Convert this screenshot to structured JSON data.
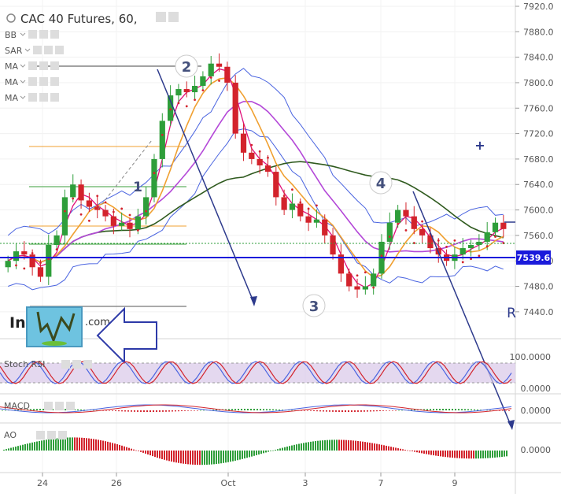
{
  "header": {
    "title": "CAC 40 Futures, 60,"
  },
  "indicators": [
    {
      "label": "BB"
    },
    {
      "label": "SAR"
    },
    {
      "label": "MA"
    },
    {
      "label": "MA"
    },
    {
      "label": "MA"
    }
  ],
  "price_axis": {
    "ticks": [
      "7920.0",
      "7880.0",
      "7840.0",
      "7800.0",
      "7760.0",
      "7720.0",
      "7680.0",
      "7640.0",
      "7600.0",
      "7560.0",
      "7520.0",
      "7480.0",
      "7440.0"
    ],
    "last_price": "7539.6",
    "last_price_color": "#1a1adb"
  },
  "time_axis": {
    "labels": [
      "24",
      "26",
      "Oct",
      "3",
      "7",
      "9"
    ]
  },
  "wave_labels": [
    "1",
    "2",
    "3",
    "4"
  ],
  "watermark": {
    "text": "In",
    "suffix": ".com"
  },
  "panes": {
    "stoch_rsi": {
      "label": "Stoch RSI",
      "ticks": [
        "100.0000",
        "0.0000"
      ]
    },
    "macd": {
      "label": "MACD",
      "ticks": [
        "0.0000"
      ]
    },
    "ao": {
      "label": "AO",
      "ticks": [
        "0.0000"
      ]
    }
  },
  "colors": {
    "bull": "#2e9e3a",
    "bear": "#d3232c",
    "bb": "#4a64e0",
    "sar": "#d3232c",
    "ma_fast": "#e0107a",
    "ma_mid": "#f0a030",
    "ma_slow": "#b448d8",
    "ma_long": "#2f5a1e",
    "arrow": "#2d3a8c"
  },
  "chart_data": {
    "type": "candlestick",
    "title": "CAC 40 Futures, 60,",
    "ylim": [
      7420,
      7920
    ],
    "x_ticks": [
      "24",
      "26",
      "Oct",
      "3",
      "7",
      "9"
    ],
    "close_series": [
      7520,
      7535,
      7530,
      7510,
      7495,
      7545,
      7560,
      7620,
      7640,
      7615,
      7605,
      7600,
      7590,
      7575,
      7580,
      7570,
      7590,
      7620,
      7680,
      7740,
      7780,
      7790,
      7785,
      7795,
      7810,
      7830,
      7825,
      7800,
      7720,
      7690,
      7680,
      7670,
      7660,
      7620,
      7600,
      7610,
      7590,
      7580,
      7585,
      7560,
      7530,
      7500,
      7480,
      7475,
      7480,
      7500,
      7550,
      7580,
      7600,
      7590,
      7570,
      7560,
      7540,
      7530,
      7520,
      7530,
      7540,
      7545,
      7550,
      7565,
      7580,
      7570
    ],
    "last_price": 7539.6,
    "fib_levels": [
      {
        "color": "#f0a030"
      },
      {
        "color": "#3a9e3a"
      },
      {
        "color": "#f0a030"
      },
      {
        "color": "#3a9e3a"
      },
      {
        "color": "#555555"
      }
    ]
  }
}
